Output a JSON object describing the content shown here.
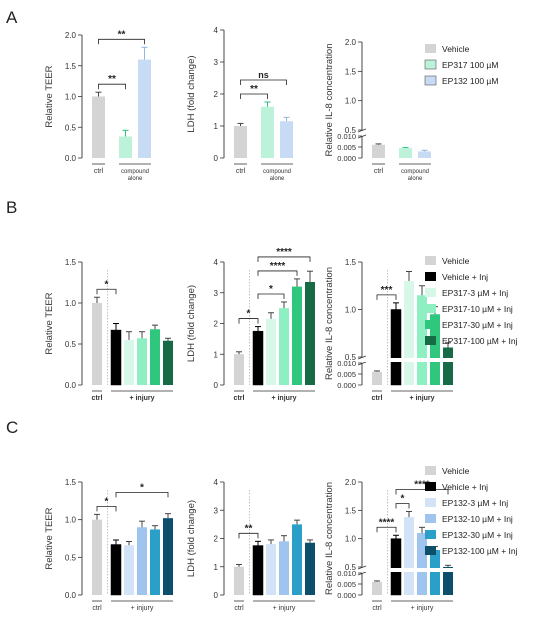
{
  "panels": [
    {
      "letter": "A",
      "legend": [
        {
          "label": "Vehicle",
          "color": "#d4d4d4"
        },
        {
          "label": "EP317 100 µM",
          "color": "#bdf2da"
        },
        {
          "label": "EP132 100 µM",
          "color": "#c7dcf4"
        }
      ],
      "charts": [
        {
          "type": "bar",
          "ylabel": "Relative TEER",
          "ylim": [
            0,
            2.0
          ],
          "yticks": [
            "0.0",
            "0.5",
            "1.0",
            "1.5",
            "2.0"
          ],
          "values": [
            1.0,
            0.35,
            1.6
          ],
          "errors": [
            0.07,
            0.1,
            0.2
          ],
          "colors": [
            "#d4d4d4",
            "#bdf2da",
            "#c7dcf4"
          ],
          "groups": [
            {
              "label": "ctrl",
              "from": 0,
              "to": 0
            },
            {
              "label": "compound alone",
              "from": 1,
              "to": 2
            }
          ],
          "sig": [
            {
              "from": 0,
              "to": 1,
              "label": "**"
            },
            {
              "from": 0,
              "to": 2,
              "label": "**"
            }
          ]
        },
        {
          "type": "bar",
          "ylabel": "LDH (fold change)",
          "ylim": [
            0,
            4
          ],
          "yticks": [
            "0",
            "1",
            "2",
            "3",
            "4"
          ],
          "values": [
            1.0,
            1.6,
            1.15
          ],
          "errors": [
            0.08,
            0.15,
            0.12
          ],
          "colors": [
            "#d4d4d4",
            "#bdf2da",
            "#c7dcf4"
          ],
          "groups": [
            {
              "label": "ctrl",
              "from": 0,
              "to": 0
            },
            {
              "label": "compound alone",
              "from": 1,
              "to": 2
            }
          ],
          "sig": [
            {
              "from": 0,
              "to": 1,
              "label": "**"
            },
            {
              "from": 0,
              "to": 2,
              "label": "ns"
            }
          ]
        },
        {
          "type": "bar",
          "ylabel": "Relative IL-8 concentration",
          "ylim_upper": [
            0.5,
            2.0
          ],
          "ylim_lower": [
            0,
            0.01
          ],
          "yticks_upper": [
            "0.5",
            "1.0",
            "1.5",
            "2.0"
          ],
          "yticks_lower": [
            "0.000",
            "0.005",
            "0.010"
          ],
          "values": [
            0.006,
            0.0045,
            0.003
          ],
          "errors": [
            0.0004,
            0.0003,
            0.0005
          ],
          "colors": [
            "#d4d4d4",
            "#bdf2da",
            "#c7dcf4"
          ],
          "groups": [
            {
              "label": "ctrl",
              "from": 0,
              "to": 0
            },
            {
              "label": "compound alone",
              "from": 1,
              "to": 2
            }
          ],
          "sig": []
        }
      ]
    },
    {
      "letter": "B",
      "legend": [
        {
          "label": "Vehicle",
          "color": "#d4d4d4"
        },
        {
          "label": "Vehicle + Inj",
          "color": "#000000"
        },
        {
          "label": "EP317-3 µM + Inj",
          "color": "#d7f7e8"
        },
        {
          "label": "EP317-10 µM + Inj",
          "color": "#8ef0c2"
        },
        {
          "label": "EP317-30 µM + Inj",
          "color": "#2fc77e"
        },
        {
          "label": "EP317-100 µM + Inj",
          "color": "#166b46"
        }
      ],
      "charts": [
        {
          "type": "bar",
          "ylabel": "Relative TEER",
          "ylim": [
            0,
            1.5
          ],
          "yticks": [
            "0.0",
            "0.5",
            "1.0",
            "1.5"
          ],
          "values": [
            1.0,
            0.67,
            0.55,
            0.57,
            0.68,
            0.54
          ],
          "errors": [
            0.07,
            0.08,
            0.1,
            0.08,
            0.05,
            0.03
          ],
          "colors": [
            "#d4d4d4",
            "#000000",
            "#d7f7e8",
            "#8ef0c2",
            "#2fc77e",
            "#166b46"
          ],
          "groups": [
            {
              "label": "ctrl",
              "from": 0,
              "to": 0
            },
            {
              "label": "+ injury",
              "from": 1,
              "to": 5
            }
          ],
          "sig": [
            {
              "from": 0,
              "to": 1,
              "label": "*"
            }
          ]
        },
        {
          "type": "bar",
          "ylabel": "LDH (fold change)",
          "ylim": [
            0,
            4
          ],
          "yticks": [
            "0",
            "1",
            "2",
            "3",
            "4"
          ],
          "values": [
            1.0,
            1.75,
            2.15,
            2.5,
            3.2,
            3.35
          ],
          "errors": [
            0.08,
            0.15,
            0.2,
            0.2,
            0.25,
            0.35
          ],
          "colors": [
            "#d4d4d4",
            "#000000",
            "#d7f7e8",
            "#8ef0c2",
            "#2fc77e",
            "#166b46"
          ],
          "groups": [
            {
              "label": "ctrl",
              "from": 0,
              "to": 0
            },
            {
              "label": "+ injury",
              "from": 1,
              "to": 5
            }
          ],
          "sig": [
            {
              "from": 0,
              "to": 1,
              "label": "*"
            },
            {
              "from": 1,
              "to": 3,
              "label": "*"
            },
            {
              "from": 1,
              "to": 4,
              "label": "****"
            },
            {
              "from": 1,
              "to": 5,
              "label": "****"
            }
          ]
        },
        {
          "type": "bar",
          "ylabel": "Relative IL-8 concentration",
          "ylim_upper": [
            0.5,
            1.5
          ],
          "ylim_lower": [
            0,
            0.01
          ],
          "yticks_upper": [
            "0.5",
            "1.0",
            "1.5"
          ],
          "yticks_lower": [
            "0.000",
            "0.005",
            "0.010"
          ],
          "values": [
            0.006,
            1.0,
            1.3,
            1.15,
            0.95,
            0.6
          ],
          "errors": [
            0.0004,
            0.07,
            0.1,
            0.1,
            0.08,
            0.05
          ],
          "colors": [
            "#d4d4d4",
            "#000000",
            "#d7f7e8",
            "#8ef0c2",
            "#2fc77e",
            "#166b46"
          ],
          "groups": [
            {
              "label": "ctrl",
              "from": 0,
              "to": 0
            },
            {
              "label": "+ injury",
              "from": 1,
              "to": 5
            }
          ],
          "sig": [
            {
              "from": 0,
              "to": 1,
              "label": "***"
            }
          ]
        }
      ]
    },
    {
      "letter": "C",
      "legend": [
        {
          "label": "Vehicle",
          "color": "#d4d4d4"
        },
        {
          "label": "Vehicle + Inj",
          "color": "#000000"
        },
        {
          "label": "EP132-3 µM + Inj",
          "color": "#d2e3f7"
        },
        {
          "label": "EP132-10 µM + Inj",
          "color": "#9fc5ee"
        },
        {
          "label": "EP132-30 µM + Inj",
          "color": "#2aa0c8"
        },
        {
          "label": "EP132-100 µM + Inj",
          "color": "#0d4f6b"
        }
      ],
      "charts": [
        {
          "type": "bar",
          "ylabel": "Relative TEER",
          "ylim": [
            0,
            1.5
          ],
          "yticks": [
            "0.0",
            "0.5",
            "1.0",
            "1.5"
          ],
          "values": [
            1.0,
            0.67,
            0.66,
            0.9,
            0.87,
            1.02
          ],
          "errors": [
            0.07,
            0.06,
            0.05,
            0.08,
            0.05,
            0.06
          ],
          "colors": [
            "#d4d4d4",
            "#000000",
            "#d2e3f7",
            "#9fc5ee",
            "#2aa0c8",
            "#0d4f6b"
          ],
          "groups": [
            {
              "label": "ctrl",
              "from": 0,
              "to": 0
            },
            {
              "label": "+ injury",
              "from": 1,
              "to": 5
            }
          ],
          "sig": [
            {
              "from": 0,
              "to": 1,
              "label": "*"
            },
            {
              "from": 1,
              "to": 5,
              "label": "*"
            }
          ]
        },
        {
          "type": "bar",
          "ylabel": "LDH (fold change)",
          "ylim": [
            0,
            4
          ],
          "yticks": [
            "0",
            "1",
            "2",
            "3",
            "4"
          ],
          "values": [
            1.0,
            1.75,
            1.8,
            1.9,
            2.5,
            1.85
          ],
          "errors": [
            0.08,
            0.15,
            0.15,
            0.2,
            0.15,
            0.1
          ],
          "colors": [
            "#d4d4d4",
            "#000000",
            "#d2e3f7",
            "#9fc5ee",
            "#2aa0c8",
            "#0d4f6b"
          ],
          "groups": [
            {
              "label": "ctrl",
              "from": 0,
              "to": 0
            },
            {
              "label": "+ injury",
              "from": 1,
              "to": 5
            }
          ],
          "sig": [
            {
              "from": 0,
              "to": 1,
              "label": "**"
            }
          ]
        },
        {
          "type": "bar",
          "ylabel": "Relative IL-8 concentration",
          "ylim_upper": [
            0.5,
            2.0
          ],
          "ylim_lower": [
            0,
            0.01
          ],
          "yticks_upper": [
            "0.5",
            "1.0",
            "1.5",
            "2.0"
          ],
          "yticks_lower": [
            "0.000",
            "0.005",
            "0.010"
          ],
          "values": [
            0.006,
            1.0,
            1.38,
            1.1,
            0.8,
            0.5
          ],
          "errors": [
            0.0004,
            0.06,
            0.1,
            0.1,
            0.06,
            0.03
          ],
          "colors": [
            "#d4d4d4",
            "#000000",
            "#d2e3f7",
            "#9fc5ee",
            "#2aa0c8",
            "#0d4f6b"
          ],
          "groups": [
            {
              "label": "ctrl",
              "from": 0,
              "to": 0
            },
            {
              "label": "+ injury",
              "from": 1,
              "to": 5
            }
          ],
          "sig": [
            {
              "from": 0,
              "to": 1,
              "label": "****"
            },
            {
              "from": 1,
              "to": 2,
              "label": "*"
            },
            {
              "from": 1,
              "to": 5,
              "label": "****"
            }
          ]
        }
      ]
    }
  ]
}
